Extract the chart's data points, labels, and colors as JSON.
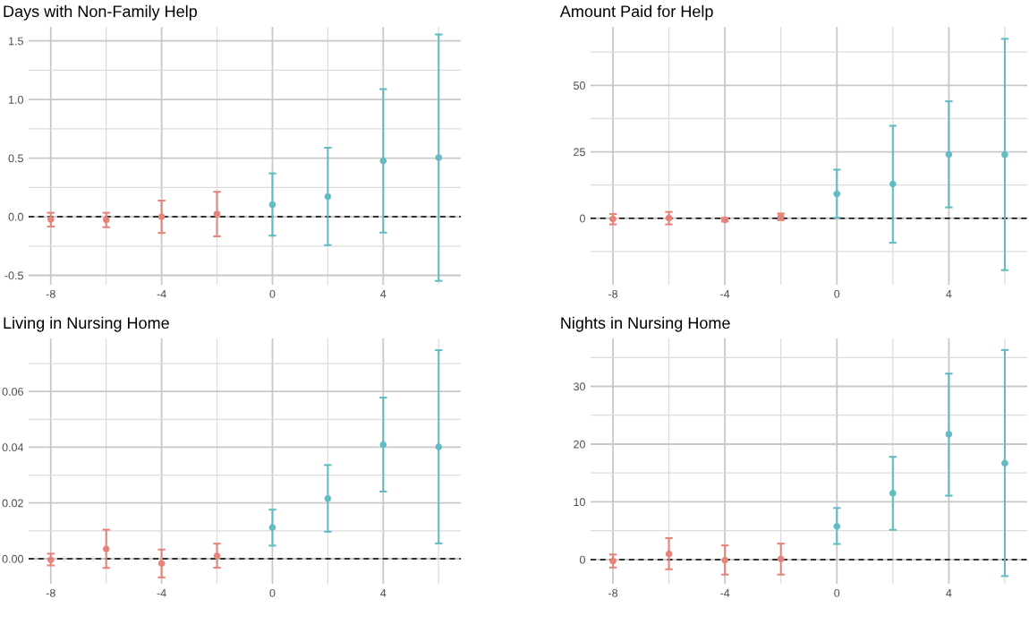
{
  "chart_data": [
    {
      "type": "scatter",
      "title": "Days with Non-Family Help",
      "x": [
        -8,
        -6,
        -4,
        -2,
        0,
        2,
        4,
        6
      ],
      "values": [
        -0.023,
        -0.026,
        0.0,
        0.023,
        0.104,
        0.172,
        0.477,
        0.505
      ],
      "errors": [
        [
          -0.083,
          0.034
        ],
        [
          -0.089,
          0.034
        ],
        [
          -0.138,
          0.138
        ],
        [
          -0.167,
          0.213
        ],
        [
          -0.161,
          0.37
        ],
        [
          -0.242,
          0.589
        ],
        [
          -0.135,
          1.089
        ],
        [
          -0.547,
          1.555
        ]
      ],
      "colors": [
        "#e8837a",
        "#e8837a",
        "#e8837a",
        "#e8837a",
        "#63bcc2",
        "#63bcc2",
        "#63bcc2",
        "#63bcc2"
      ],
      "xlim": [
        -8.8,
        6.8
      ],
      "xticks": [
        -8,
        -4,
        0,
        4
      ],
      "ylim": [
        -0.58,
        1.62
      ],
      "yticks": [
        -0.5,
        {
          "value": 0,
          "label": "0.0"
        },
        0.5,
        {
          "value": 1,
          "label": "1.0"
        },
        1.5
      ],
      "ref_lines": [
        {
          "axis": "y",
          "value": 0,
          "color": "#000000",
          "line_style": "dashed"
        }
      ],
      "grid": true,
      "marker": "circle"
    },
    {
      "type": "scatter",
      "title": "Amount Paid for Help",
      "x": [
        -8,
        -6,
        -4,
        -2,
        0,
        2,
        4,
        6
      ],
      "values": [
        -0.3,
        0.1,
        -0.6,
        0.6,
        9.2,
        12.9,
        24.0,
        23.9
      ],
      "errors": [
        [
          -2.3,
          1.6
        ],
        [
          -2.3,
          2.4
        ],
        [
          -1.2,
          0.1
        ],
        [
          -0.7,
          1.8
        ],
        [
          0.2,
          18.3
        ],
        [
          -9.2,
          34.8
        ],
        [
          4.1,
          44.0
        ],
        [
          -19.5,
          67.5
        ]
      ],
      "colors": [
        "#e8837a",
        "#e8837a",
        "#e8837a",
        "#e8837a",
        "#63bcc2",
        "#63bcc2",
        "#63bcc2",
        "#63bcc2"
      ],
      "xlim": [
        -8.8,
        6.8
      ],
      "xticks": [
        -8,
        -4,
        0,
        4
      ],
      "ylim": [
        -25,
        72
      ],
      "yticks": [
        0,
        25,
        50
      ],
      "ref_lines": [
        {
          "axis": "y",
          "value": 0,
          "color": "#000000",
          "line_style": "dashed"
        }
      ],
      "grid": true,
      "marker": "circle"
    },
    {
      "type": "scatter",
      "title": "Living in Nursing Home",
      "x": [
        -8,
        -6,
        -4,
        -2,
        0,
        2,
        4,
        6
      ],
      "values": [
        -0.0004,
        0.0035,
        -0.0017,
        0.001,
        0.0112,
        0.0216,
        0.0409,
        0.0401
      ],
      "errors": [
        [
          -0.0024,
          0.0018
        ],
        [
          -0.0033,
          0.0104
        ],
        [
          -0.0067,
          0.0033
        ],
        [
          -0.0032,
          0.0054
        ],
        [
          0.0047,
          0.0176
        ],
        [
          0.0097,
          0.0336
        ],
        [
          0.0241,
          0.0578
        ],
        [
          0.0055,
          0.0748
        ]
      ],
      "colors": [
        "#e8837a",
        "#e8837a",
        "#e8837a",
        "#e8837a",
        "#63bcc2",
        "#63bcc2",
        "#63bcc2",
        "#63bcc2"
      ],
      "xlim": [
        -8.8,
        6.8
      ],
      "xticks": [
        -8,
        -4,
        0,
        4
      ],
      "ylim": [
        -0.009,
        0.079
      ],
      "yticks": [
        {
          "value": 0,
          "label": "0.00"
        },
        {
          "value": 0.02,
          "label": "0.02"
        },
        {
          "value": 0.04,
          "label": "0.04"
        },
        {
          "value": 0.06,
          "label": "0.06"
        }
      ],
      "ref_lines": [
        {
          "axis": "y",
          "value": 0,
          "color": "#000000",
          "line_style": "dashed"
        }
      ],
      "grid": true,
      "marker": "circle"
    },
    {
      "type": "scatter",
      "title": "Nights in Nursing Home",
      "x": [
        -8,
        -6,
        -4,
        -2,
        0,
        2,
        4,
        6
      ],
      "values": [
        -0.26,
        0.97,
        -0.1,
        0.1,
        5.77,
        11.48,
        21.7,
        16.7
      ],
      "errors": [
        [
          -1.38,
          0.87
        ],
        [
          -1.68,
          3.72
        ],
        [
          -2.6,
          2.45
        ],
        [
          -2.6,
          2.76
        ],
        [
          2.7,
          8.93
        ],
        [
          5.15,
          17.8
        ],
        [
          11.07,
          32.2
        ],
        [
          -2.86,
          36.3
        ]
      ],
      "colors": [
        "#e8837a",
        "#e8837a",
        "#e8837a",
        "#e8837a",
        "#63bcc2",
        "#63bcc2",
        "#63bcc2",
        "#63bcc2"
      ],
      "xlim": [
        -8.8,
        6.8
      ],
      "xticks": [
        -8,
        -4,
        0,
        4
      ],
      "ylim": [
        -4.2,
        38.3
      ],
      "yticks": [
        0,
        10,
        20,
        30
      ],
      "ref_lines": [
        {
          "axis": "y",
          "value": 0,
          "color": "#000000",
          "line_style": "dashed"
        }
      ],
      "grid": true,
      "marker": "circle"
    }
  ]
}
